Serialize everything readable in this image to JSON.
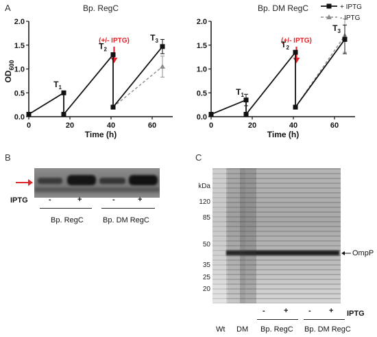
{
  "panels": {
    "A": "A",
    "B": "B",
    "C": "C"
  },
  "chart_data": [
    {
      "type": "line",
      "title": "Bp. RegC",
      "xlabel": "Time (h)",
      "ylabel": "OD600",
      "ylabel_main": "OD",
      "ylabel_sub": "600",
      "xlim": [
        0,
        70
      ],
      "ylim": [
        0,
        2.0
      ],
      "xticks": [
        0,
        20,
        40,
        60
      ],
      "yticks": [
        0.0,
        0.5,
        1.0,
        1.5,
        2.0
      ],
      "ytick_labels": [
        "0.0",
        "0.5",
        "1.0",
        "1.5",
        "2.0"
      ],
      "arrow_label": "(+/- IPTG)",
      "arrow_x": 41.5,
      "series": [
        {
          "name": "+ IPTG",
          "x": [
            0,
            17,
            17,
            41,
            41,
            65
          ],
          "y": [
            0.05,
            0.5,
            0.05,
            1.3,
            0.2,
            1.47
          ],
          "err": [
            0,
            0,
            0,
            0,
            0,
            0.15
          ]
        },
        {
          "name": "- IPTG",
          "x": [
            41,
            65
          ],
          "y": [
            0.2,
            1.05
          ],
          "err": [
            0,
            0.22
          ]
        }
      ],
      "annotations": [
        {
          "main": "T",
          "sub": "1",
          "x": 14,
          "y": 0.62
        },
        {
          "main": "T",
          "sub": "2",
          "x": 36,
          "y": 1.42
        },
        {
          "main": "T",
          "sub": "3",
          "x": 61,
          "y": 1.6
        }
      ]
    },
    {
      "type": "line",
      "title": "Bp. DM RegC",
      "xlabel": "Time (h)",
      "ylabel": "",
      "xlim": [
        0,
        70
      ],
      "ylim": [
        0,
        2.0
      ],
      "xticks": [
        0,
        20,
        40,
        60
      ],
      "yticks": [
        0.0,
        0.5,
        1.0,
        1.5,
        2.0
      ],
      "ytick_labels": [
        "0.0",
        "0.5",
        "1.0",
        "1.5",
        "2.0"
      ],
      "arrow_label": "(+/- IPTG)",
      "arrow_x": 41.5,
      "series": [
        {
          "name": "+ IPTG",
          "x": [
            0,
            17,
            17,
            41,
            41,
            65
          ],
          "y": [
            0.05,
            0.35,
            0.05,
            1.35,
            0.2,
            1.62
          ],
          "err": [
            0,
            0.12,
            0,
            0,
            0,
            0.3
          ]
        },
        {
          "name": "- IPTG",
          "x": [
            41,
            65
          ],
          "y": [
            0.2,
            1.7
          ],
          "err": [
            0,
            0.35
          ]
        }
      ],
      "annotations": [
        {
          "main": "T",
          "sub": "1",
          "x": 14,
          "y": 0.46
        },
        {
          "main": "T",
          "sub": "2",
          "x": 36,
          "y": 1.45
        },
        {
          "main": "T",
          "sub": "3",
          "x": 61,
          "y": 1.8
        }
      ],
      "legend": {
        "position": "top-right",
        "entries": [
          "+ IPTG",
          "- IPTG"
        ]
      }
    }
  ],
  "gel_b": {
    "iptg_label": "IPTG",
    "lanes": [
      "-",
      "+",
      "-",
      "+"
    ],
    "groups": [
      "Bp. RegC",
      "Bp. DM RegC"
    ]
  },
  "gel_c": {
    "kda_label": "kDa",
    "markers": [
      "120",
      "85",
      "50",
      "35",
      "25",
      "20"
    ],
    "band_label": "OmpP",
    "iptg_label": "IPTG",
    "lanes": [
      "-",
      "+",
      "-",
      "+"
    ],
    "strains": [
      "Wt",
      "DM"
    ],
    "groups": [
      "Bp. RegC",
      "Bp. DM RegC"
    ]
  },
  "colors": {
    "plus_series": "#111111",
    "minus_series": "#8c8c8c",
    "arrow": "#e0262b",
    "arrow_text": "#e0262b"
  }
}
